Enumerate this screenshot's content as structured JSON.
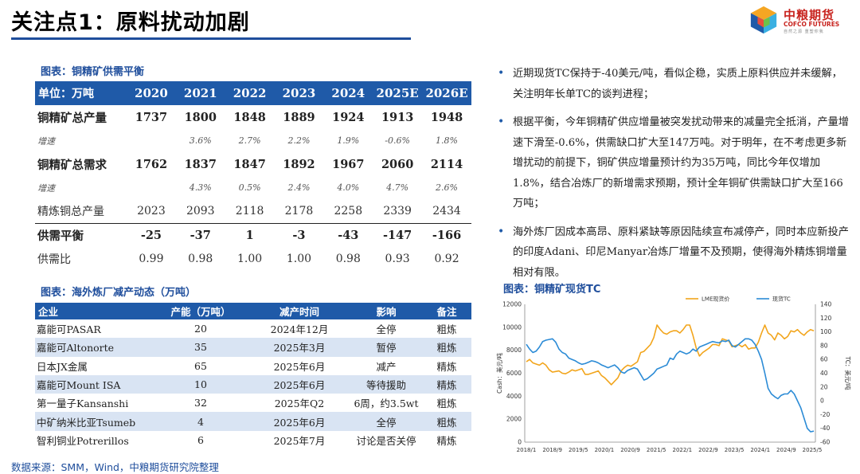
{
  "title": "关注点1：原料扰动加剧",
  "logo": {
    "cn": "中粮期货",
    "en": "COFCO FUTURES",
    "slogan": "自然之源 重塑你我"
  },
  "supply_demand": {
    "caption": "图表：铜精矿供需平衡",
    "header": [
      "单位：万吨",
      "2020",
      "2021",
      "2022",
      "2023",
      "2024",
      "2025E",
      "2026E"
    ],
    "rows": [
      {
        "cells": [
          "铜精矿总产量",
          "1737",
          "1800",
          "1848",
          "1889",
          "1924",
          "1913",
          "1948"
        ]
      },
      {
        "cells": [
          "增速",
          "",
          "3.6%",
          "2.7%",
          "2.2%",
          "1.9%",
          "-0.6%",
          "1.8%"
        ]
      },
      {
        "cells": [
          "铜精矿总需求",
          "1762",
          "1837",
          "1847",
          "1892",
          "1967",
          "2060",
          "2114"
        ]
      },
      {
        "cells": [
          "增速",
          "",
          "4.3%",
          "0.5%",
          "2.4%",
          "4.0%",
          "4.7%",
          "2.6%"
        ]
      },
      {
        "cells": [
          "精炼铜总产量",
          "2023",
          "2093",
          "2118",
          "2178",
          "2258",
          "2339",
          "2434"
        ]
      },
      {
        "cells": [
          "供需平衡",
          "-25",
          "-37",
          "1",
          "-3",
          "-43",
          "-147",
          "-166"
        ]
      },
      {
        "cells": [
          "供需比",
          "0.99",
          "0.98",
          "1.00",
          "1.00",
          "0.98",
          "0.93",
          "0.92"
        ]
      }
    ]
  },
  "smelter_cuts": {
    "caption": "图表：海外炼厂减产动态（万吨）",
    "header": [
      "企业",
      "产能（万吨）",
      "减产时间",
      "影响",
      "备注"
    ],
    "rows": [
      [
        "嘉能可PASAR",
        "20",
        "2024年12月",
        "全停",
        "粗炼"
      ],
      [
        "嘉能可Altonorte",
        "35",
        "2025年3月",
        "暂停",
        "粗炼"
      ],
      [
        "日本JX金属",
        "65",
        "2025年6月",
        "减产",
        "精炼"
      ],
      [
        "嘉能可Mount ISA",
        "10",
        "2025年6月",
        "等待援助",
        "精炼"
      ],
      [
        "第一量子Kansanshi",
        "32",
        "2025年Q2",
        "6周，约3.5wt",
        "粗炼"
      ],
      [
        "中矿纳米比亚Tsumeb",
        "4",
        "2025年6月",
        "全停",
        "粗炼"
      ],
      [
        "智利铜业Potrerillos",
        "6",
        "2025年7月",
        "讨论是否关停",
        "精炼"
      ]
    ]
  },
  "source": "数据来源：SMM，Wind，中粮期货研究院整理",
  "bullets": [
    "近期现货TC保持于-40美元/吨，看似企稳，实质上原料供应并未缓解，关注明年长单TC的谈判进程；",
    "根据平衡，今年铜精矿供应增量被突发扰动带来的减量完全抵消，产量增速下滑至-0.6%，供需缺口扩大至147万吨。对于明年，在不考虑更多新增扰动的前提下，铜矿供应增量预计约为35万吨，同比今年仅增加1.8%，结合冶炼厂的新增需求预期，预计全年铜矿供需缺口扩大至166万吨；",
    "海外炼厂因成本高昂、原料紧缺等原因陆续宣布减停产，同时本应新投产的印度Adani、印尼Manyar冶炼厂增量不及预期，使得海外精炼铜增量相对有限。"
  ],
  "colors": {
    "accent": "#1f5aa8",
    "lme": "#f2a51c",
    "tc": "#2b8bd6",
    "brand_red": "#c8231e"
  },
  "chart_data": {
    "type": "line",
    "title": "图表：铜精矿现货TC",
    "ylabel_left": "Cash：美元/吨",
    "ylabel_right": "TC：美元/吨",
    "ylim_left": [
      0,
      12000
    ],
    "ylim_right": [
      -60,
      140
    ],
    "yticks_left": [
      "0",
      "2000",
      "4000",
      "6000",
      "8000",
      "10000",
      "12000"
    ],
    "yticks_right": [
      "-60",
      "-40",
      "-20",
      "0",
      "20",
      "40",
      "60",
      "80",
      "100",
      "120",
      "140"
    ],
    "xticks": [
      "2018/1",
      "2018/9",
      "2019/5",
      "2020/1",
      "2020/9",
      "2021/5",
      "2022/1",
      "2022/9",
      "2023/5",
      "2024/1",
      "2024/9",
      "2025/5"
    ],
    "series": [
      {
        "name": "LME现货价",
        "axis": "left",
        "color": "#f2a51c",
        "values": [
          7000,
          7200,
          6900,
          6800,
          6700,
          6900,
          6700,
          6300,
          6100,
          6150,
          6200,
          6000,
          5950,
          6100,
          6300,
          6200,
          6300,
          6400,
          5900,
          5900,
          6000,
          6100,
          6200,
          5800,
          5600,
          5300,
          5000,
          5300,
          5600,
          6200,
          6500,
          6700,
          6600,
          6800,
          7000,
          7800,
          7900,
          8200,
          8500,
          9100,
          10200,
          9800,
          9500,
          9400,
          9600,
          9700,
          9700,
          9500,
          9800,
          10200,
          10200,
          9300,
          8200,
          7500,
          7800,
          8000,
          8200,
          8500,
          8500,
          8400,
          9000,
          8900,
          8800,
          8300,
          8400,
          8500,
          8300,
          8500,
          8100,
          8200,
          8200,
          8700,
          9500,
          10200,
          9500,
          9300,
          8900,
          9500,
          9300,
          9000,
          9200,
          9700,
          9600,
          9800,
          9500,
          9300,
          9600,
          9800,
          9700
        ]
      },
      {
        "name": "现货TC",
        "axis": "right",
        "color": "#2b8bd6",
        "values": [
          82,
          75,
          70,
          72,
          78,
          86,
          88,
          89,
          90,
          85,
          75,
          70,
          68,
          62,
          60,
          58,
          55,
          53,
          54,
          56,
          58,
          57,
          55,
          52,
          50,
          48,
          50,
          52,
          48,
          42,
          40,
          44,
          46,
          48,
          46,
          38,
          30,
          32,
          36,
          40,
          46,
          48,
          50,
          52,
          62,
          60,
          68,
          72,
          70,
          68,
          70,
          75,
          72,
          78,
          80,
          82,
          84,
          86,
          85,
          84,
          87,
          86,
          88,
          80,
          78,
          82,
          86,
          90,
          90,
          88,
          82,
          72,
          60,
          40,
          18,
          10,
          6,
          3,
          8,
          10,
          10,
          15,
          10,
          0,
          -10,
          -25,
          -40,
          -45,
          -44
        ]
      }
    ]
  }
}
